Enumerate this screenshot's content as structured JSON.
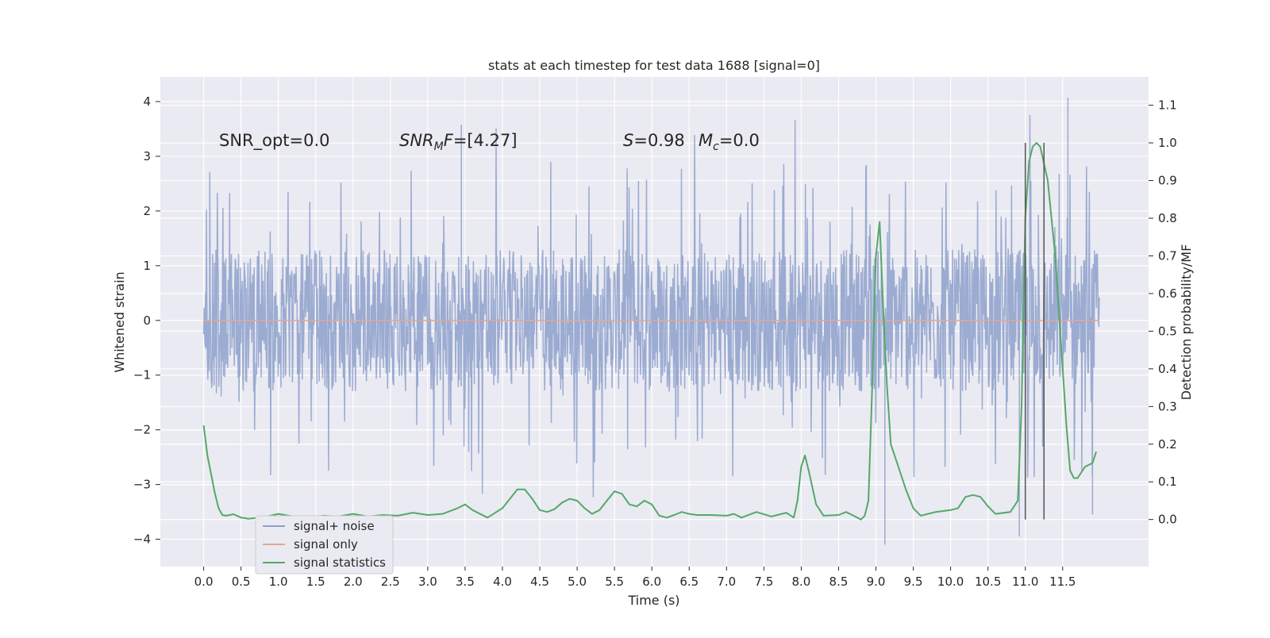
{
  "chart_data": {
    "type": "line",
    "title": "stats at each timestep for test data 1688 [signal=0]",
    "xlabel": "Time (s)",
    "ylabel_left": "Whitened strain",
    "ylabel_right": "Detection probability/MF",
    "xlim": [
      -0.58,
      12.65
    ],
    "ylim_left": [
      -4.5,
      4.45
    ],
    "ylim_right": [
      -0.125,
      1.175
    ],
    "x_ticks": [
      0.0,
      0.5,
      1.0,
      1.5,
      2.0,
      2.5,
      3.0,
      3.5,
      4.0,
      4.5,
      5.0,
      5.5,
      6.0,
      6.5,
      7.0,
      7.5,
      8.0,
      8.5,
      9.0,
      9.5,
      10.0,
      10.5,
      11.0,
      11.5
    ],
    "x_tick_labels": [
      "0.0",
      "0.5",
      "1.0",
      "1.5",
      "2.0",
      "2.5",
      "3.0",
      "3.5",
      "4.0",
      "4.5",
      "5.0",
      "5.5",
      "6.0",
      "6.5",
      "7.0",
      "7.5",
      "8.0",
      "8.5",
      "9.0",
      "9.5",
      "10.0",
      "10.5",
      "11.0",
      "11.5"
    ],
    "y_left_ticks": [
      -4,
      -3,
      -2,
      -1,
      0,
      1,
      2,
      3,
      4
    ],
    "y_left_tick_labels": [
      "−4",
      "−3",
      "−2",
      "−1",
      "0",
      "1",
      "2",
      "3",
      "4"
    ],
    "y_right_ticks": [
      0.0,
      0.1,
      0.2,
      0.3,
      0.4,
      0.5,
      0.6,
      0.7,
      0.8,
      0.9,
      1.0,
      1.1
    ],
    "y_right_tick_labels": [
      "0.0",
      "0.1",
      "0.2",
      "0.3",
      "0.4",
      "0.5",
      "0.6",
      "0.7",
      "0.8",
      "0.9",
      "1.0",
      "1.1"
    ],
    "grid": true,
    "legend_position": "bottom-left",
    "legend": [
      "signal+ noise",
      "signal only",
      "signal statistics"
    ],
    "colors": {
      "background": "#eaeaf2",
      "grid": "#ffffff",
      "noise": "#8da0cb",
      "signal_only": "#e7a78f",
      "statistics": "#55a868",
      "markers": "#555555"
    },
    "annotations": {
      "snr_opt": "SNR_opt=0.0",
      "snr_mf_main": "SNR",
      "snr_mf_sub": "M",
      "snr_mf_rest": "F=[4.27]",
      "s_label": "S",
      "s_rest": "=0.98",
      "mc_main": "M",
      "mc_sub": "c",
      "mc_rest": "=0.0"
    },
    "series": [
      {
        "name": "signal+ noise",
        "axis": "left",
        "x_range": [
          0.0,
          11.99
        ],
        "envelope_typical": 1.3,
        "peak_max": 4.07,
        "peak_min": -4.1
      },
      {
        "name": "signal only",
        "axis": "left",
        "x": [
          0.0,
          11.99
        ],
        "y": [
          0.0,
          0.0
        ]
      },
      {
        "name": "signal statistics",
        "axis": "right",
        "x": [
          0.0,
          0.05,
          0.1,
          0.15,
          0.2,
          0.25,
          0.3,
          0.4,
          0.5,
          0.6,
          0.8,
          1.0,
          1.2,
          1.4,
          1.6,
          1.8,
          2.0,
          2.2,
          2.4,
          2.6,
          2.8,
          3.0,
          3.2,
          3.4,
          3.5,
          3.6,
          3.8,
          4.0,
          4.1,
          4.2,
          4.3,
          4.4,
          4.5,
          4.6,
          4.7,
          4.8,
          4.9,
          5.0,
          5.1,
          5.2,
          5.3,
          5.4,
          5.5,
          5.6,
          5.7,
          5.8,
          5.9,
          6.0,
          6.1,
          6.2,
          6.3,
          6.4,
          6.5,
          6.6,
          6.8,
          7.0,
          7.1,
          7.2,
          7.4,
          7.6,
          7.8,
          7.9,
          7.95,
          8.0,
          8.05,
          8.1,
          8.2,
          8.3,
          8.5,
          8.6,
          8.7,
          8.8,
          8.85,
          8.9,
          8.95,
          9.0,
          9.05,
          9.1,
          9.15,
          9.2,
          9.3,
          9.4,
          9.5,
          9.6,
          9.8,
          10.0,
          10.1,
          10.2,
          10.3,
          10.4,
          10.5,
          10.6,
          10.8,
          10.9,
          10.95,
          11.0,
          11.05,
          11.1,
          11.15,
          11.2,
          11.3,
          11.4,
          11.5,
          11.55,
          11.6,
          11.65,
          11.7,
          11.8,
          11.9,
          11.95
        ],
        "y": [
          0.25,
          0.17,
          0.12,
          0.07,
          0.03,
          0.012,
          0.01,
          0.014,
          0.005,
          0.002,
          0.006,
          0.015,
          0.008,
          0.003,
          0.01,
          0.008,
          0.015,
          0.008,
          0.012,
          0.01,
          0.018,
          0.012,
          0.015,
          0.03,
          0.04,
          0.025,
          0.005,
          0.03,
          0.055,
          0.08,
          0.08,
          0.055,
          0.025,
          0.02,
          0.028,
          0.045,
          0.055,
          0.05,
          0.03,
          0.015,
          0.025,
          0.05,
          0.075,
          0.068,
          0.04,
          0.035,
          0.05,
          0.04,
          0.01,
          0.005,
          0.012,
          0.02,
          0.015,
          0.012,
          0.012,
          0.01,
          0.015,
          0.005,
          0.02,
          0.008,
          0.018,
          0.005,
          0.05,
          0.14,
          0.17,
          0.13,
          0.04,
          0.01,
          0.012,
          0.02,
          0.01,
          0.0,
          0.01,
          0.05,
          0.35,
          0.7,
          0.79,
          0.55,
          0.35,
          0.2,
          0.14,
          0.08,
          0.03,
          0.01,
          0.02,
          0.025,
          0.03,
          0.06,
          0.065,
          0.06,
          0.035,
          0.015,
          0.02,
          0.05,
          0.3,
          0.8,
          0.95,
          0.99,
          1.0,
          0.99,
          0.9,
          0.7,
          0.4,
          0.25,
          0.13,
          0.11,
          0.11,
          0.14,
          0.15,
          0.18
        ]
      }
    ],
    "vertical_markers": [
      11.0,
      11.25
    ],
    "vertical_marker_range": [
      0.0,
      1.0
    ]
  }
}
